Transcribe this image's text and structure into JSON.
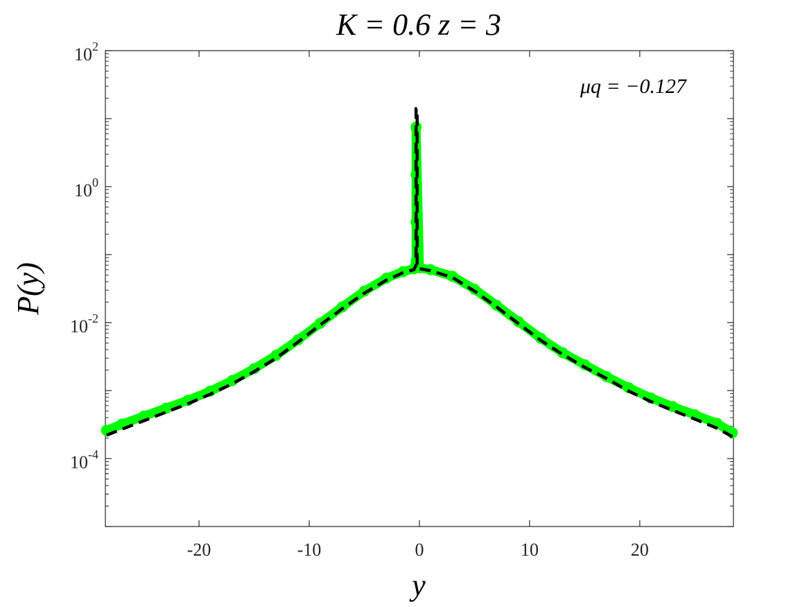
{
  "chart_data": {
    "type": "scatter",
    "title": "K = 0.6   z = 3",
    "xlabel": "y",
    "ylabel": "P(y)",
    "annotation": "μq = −0.127",
    "xlim": [
      -28.5,
      28.5
    ],
    "ylim": [
      1e-05,
      100
    ],
    "yscale": "log",
    "xticks": [
      -20,
      -10,
      0,
      10,
      20
    ],
    "xtick_labels": [
      "-20",
      "-10",
      "0",
      "10",
      "20"
    ],
    "yticks": [
      0.0001,
      0.01,
      1,
      100
    ],
    "ytick_labels": [
      {
        "base": "10",
        "exp": "-4"
      },
      {
        "base": "10",
        "exp": "-2"
      },
      {
        "base": "10",
        "exp": "0"
      },
      {
        "base": "10",
        "exp": "2"
      }
    ],
    "grid": false,
    "box": true,
    "series": [
      {
        "style": "markers",
        "color": "#00ff00",
        "points": [
          [
            -28.4,
            0.00026
          ],
          [
            -27,
            0.00032
          ],
          [
            -25,
            0.00042
          ],
          [
            -23,
            0.00055
          ],
          [
            -21,
            0.00072
          ],
          [
            -19,
            0.00098
          ],
          [
            -17,
            0.0014
          ],
          [
            -15,
            0.0021
          ],
          [
            -13,
            0.0033
          ],
          [
            -11,
            0.0056
          ],
          [
            -9,
            0.0098
          ],
          [
            -7,
            0.017
          ],
          [
            -5,
            0.029
          ],
          [
            -3,
            0.045
          ],
          [
            -1.5,
            0.056
          ],
          [
            -0.5,
            0.062
          ],
          [
            -0.3,
            0.08
          ],
          [
            -0.3,
            0.3
          ],
          [
            -0.3,
            1.5
          ],
          [
            -0.3,
            7.5
          ],
          [
            0,
            0.064
          ],
          [
            1,
            0.06
          ],
          [
            3,
            0.048
          ],
          [
            5,
            0.031
          ],
          [
            7,
            0.018
          ],
          [
            9,
            0.0103
          ],
          [
            11,
            0.0059
          ],
          [
            13,
            0.0036
          ],
          [
            15,
            0.0024
          ],
          [
            17,
            0.0016
          ],
          [
            19,
            0.0011
          ],
          [
            21,
            0.00078
          ],
          [
            23,
            0.00058
          ],
          [
            25,
            0.00044
          ],
          [
            27,
            0.00033
          ],
          [
            28.4,
            0.00024
          ]
        ]
      },
      {
        "style": "dashed-line",
        "color": "#000000",
        "points": [
          [
            -28.4,
            0.00022
          ],
          [
            -27,
            0.00027
          ],
          [
            -25,
            0.00036
          ],
          [
            -23,
            0.00048
          ],
          [
            -21,
            0.00064
          ],
          [
            -19,
            0.00088
          ],
          [
            -17,
            0.00125
          ],
          [
            -15,
            0.0019
          ],
          [
            -13,
            0.003
          ],
          [
            -11,
            0.0052
          ],
          [
            -9,
            0.0092
          ],
          [
            -7,
            0.016
          ],
          [
            -5,
            0.027
          ],
          [
            -3,
            0.042
          ],
          [
            -1.5,
            0.054
          ],
          [
            -0.5,
            0.06
          ],
          [
            -0.3,
            0.07
          ],
          [
            -0.3,
            14
          ],
          [
            -0.2,
            14
          ],
          [
            -0.2,
            0.063
          ],
          [
            0,
            0.062
          ],
          [
            1,
            0.058
          ],
          [
            3,
            0.046
          ],
          [
            5,
            0.029
          ],
          [
            7,
            0.017
          ],
          [
            9,
            0.0096
          ],
          [
            11,
            0.0055
          ],
          [
            13,
            0.0034
          ],
          [
            15,
            0.0022
          ],
          [
            17,
            0.0015
          ],
          [
            19,
            0.00098
          ],
          [
            21,
            0.00069
          ],
          [
            23,
            0.00051
          ],
          [
            25,
            0.00038
          ],
          [
            27,
            0.00028
          ],
          [
            28.4,
            0.00021
          ]
        ]
      }
    ]
  }
}
